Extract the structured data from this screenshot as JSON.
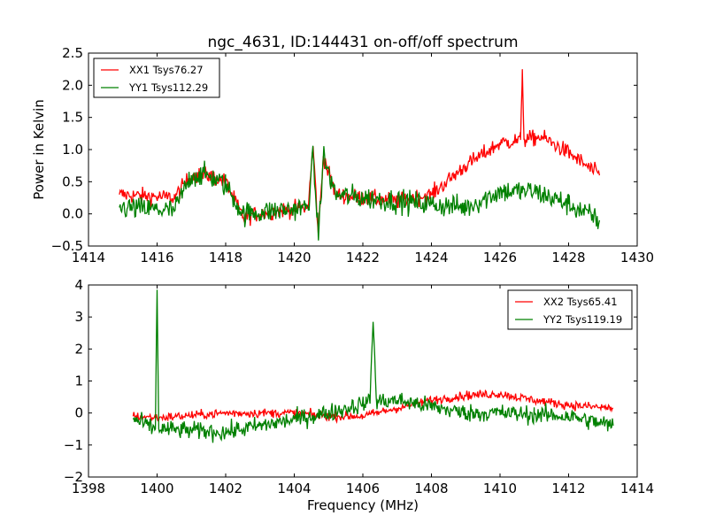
{
  "chart_data": [
    {
      "type": "line",
      "title": "ngc_4631, ID:144431 on-off/off spectrum",
      "xlabel": "",
      "ylabel": "Power in Kelvin",
      "xlim": [
        1414,
        1430
      ],
      "ylim": [
        -0.5,
        2.5
      ],
      "xticks": [
        "1414",
        "1416",
        "1418",
        "1420",
        "1422",
        "1424",
        "1426",
        "1428",
        "1430"
      ],
      "yticks": [
        "−0.5",
        "0.0",
        "0.5",
        "1.0",
        "1.5",
        "2.0",
        "2.5"
      ],
      "legend_position": "top-left",
      "grid": false,
      "series": [
        {
          "name": "XX1 Tsys76.27",
          "color": "#ff0000",
          "noise": 0.09,
          "x": [
            1414.9,
            1416.5,
            1417.0,
            1417.5,
            1418.0,
            1418.5,
            1419.5,
            1420.4,
            1420.55,
            1420.7,
            1420.85,
            1421.2,
            1422.0,
            1423.0,
            1424.0,
            1425.0,
            1426.0,
            1426.6,
            1426.65,
            1426.7,
            1427.2,
            1428.0,
            1428.9
          ],
          "y": [
            0.3,
            0.25,
            0.6,
            0.6,
            0.5,
            -0.05,
            0.05,
            0.1,
            1.05,
            -0.3,
            0.9,
            0.3,
            0.25,
            0.2,
            0.3,
            0.75,
            1.1,
            1.15,
            2.25,
            1.15,
            1.2,
            0.95,
            0.6
          ]
        },
        {
          "name": "YY1 Tsys112.29",
          "color": "#008000",
          "noise": 0.13,
          "x": [
            1414.9,
            1416.5,
            1417.0,
            1417.5,
            1418.0,
            1418.5,
            1419.5,
            1420.4,
            1420.55,
            1420.7,
            1420.85,
            1421.2,
            1422.0,
            1423.0,
            1424.0,
            1425.0,
            1426.0,
            1427.0,
            1428.0,
            1428.9
          ],
          "y": [
            0.1,
            0.05,
            0.6,
            0.6,
            0.45,
            0.0,
            0.05,
            0.1,
            0.9,
            -0.35,
            0.9,
            0.3,
            0.25,
            0.2,
            0.15,
            0.1,
            0.35,
            0.35,
            0.15,
            -0.1
          ]
        }
      ]
    },
    {
      "type": "line",
      "title": "",
      "xlabel": "Frequency (MHz)",
      "ylabel": "",
      "xlim": [
        1398,
        1414
      ],
      "ylim": [
        -2,
        4
      ],
      "xticks": [
        "1398",
        "1400",
        "1402",
        "1404",
        "1406",
        "1408",
        "1410",
        "1412",
        "1414"
      ],
      "yticks": [
        "−2",
        "−1",
        "0",
        "1",
        "2",
        "3",
        "4"
      ],
      "legend_position": "top-right",
      "grid": false,
      "series": [
        {
          "name": "XX2 Tsys65.41",
          "color": "#ff0000",
          "noise": 0.1,
          "x": [
            1399.3,
            1400.0,
            1402.0,
            1404.0,
            1405.0,
            1406.0,
            1407.0,
            1408.0,
            1409.0,
            1410.0,
            1411.0,
            1412.0,
            1413.3
          ],
          "y": [
            -0.1,
            -0.15,
            0.0,
            0.0,
            -0.1,
            -0.1,
            0.15,
            0.4,
            0.55,
            0.6,
            0.4,
            0.25,
            0.15
          ]
        },
        {
          "name": "YY2 Tsys119.19",
          "color": "#008000",
          "noise": 0.2,
          "x": [
            1399.3,
            1399.95,
            1400.0,
            1400.05,
            1401.0,
            1402.0,
            1403.0,
            1404.0,
            1405.0,
            1406.2,
            1406.3,
            1406.4,
            1407.0,
            1408.0,
            1409.0,
            1410.0,
            1411.0,
            1412.0,
            1413.3
          ],
          "y": [
            -0.2,
            -0.5,
            3.85,
            -0.5,
            -0.55,
            -0.6,
            -0.4,
            -0.2,
            0.0,
            0.35,
            2.85,
            0.35,
            0.4,
            0.2,
            0.0,
            0.0,
            -0.05,
            -0.1,
            -0.4
          ]
        }
      ]
    }
  ]
}
